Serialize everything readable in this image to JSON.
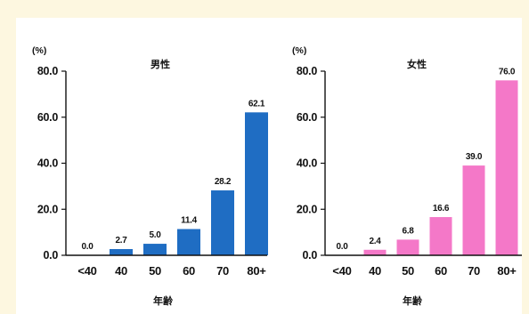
{
  "chart_data": [
    {
      "type": "bar",
      "title": "男性",
      "unit": "(%)",
      "xlabel": "年齢",
      "ylabel": "",
      "categories": [
        "<40",
        "40",
        "50",
        "60",
        "70",
        "80+"
      ],
      "values": [
        0.0,
        2.7,
        5.0,
        11.4,
        28.2,
        62.1
      ],
      "value_labels": [
        "0.0",
        "2.7",
        "5.0",
        "11.4",
        "28.2",
        "62.1"
      ],
      "ylim": [
        0,
        80
      ],
      "yticks": [
        "0.0",
        "20.0",
        "40.0",
        "60.0",
        "80.0"
      ],
      "grid": false,
      "color": "#1f6dc3"
    },
    {
      "type": "bar",
      "title": "女性",
      "unit": "(%)",
      "xlabel": "年齢",
      "ylabel": "",
      "categories": [
        "<40",
        "40",
        "50",
        "60",
        "70",
        "80+"
      ],
      "values": [
        0.0,
        2.4,
        6.8,
        16.6,
        39.0,
        76.0
      ],
      "value_labels": [
        "0.0",
        "2.4",
        "6.8",
        "16.6",
        "39.0",
        "76.0"
      ],
      "ylim": [
        0,
        80
      ],
      "yticks": [
        "0.0",
        "20.0",
        "40.0",
        "60.0",
        "80.0"
      ],
      "grid": false,
      "color": "#f478c8"
    }
  ]
}
